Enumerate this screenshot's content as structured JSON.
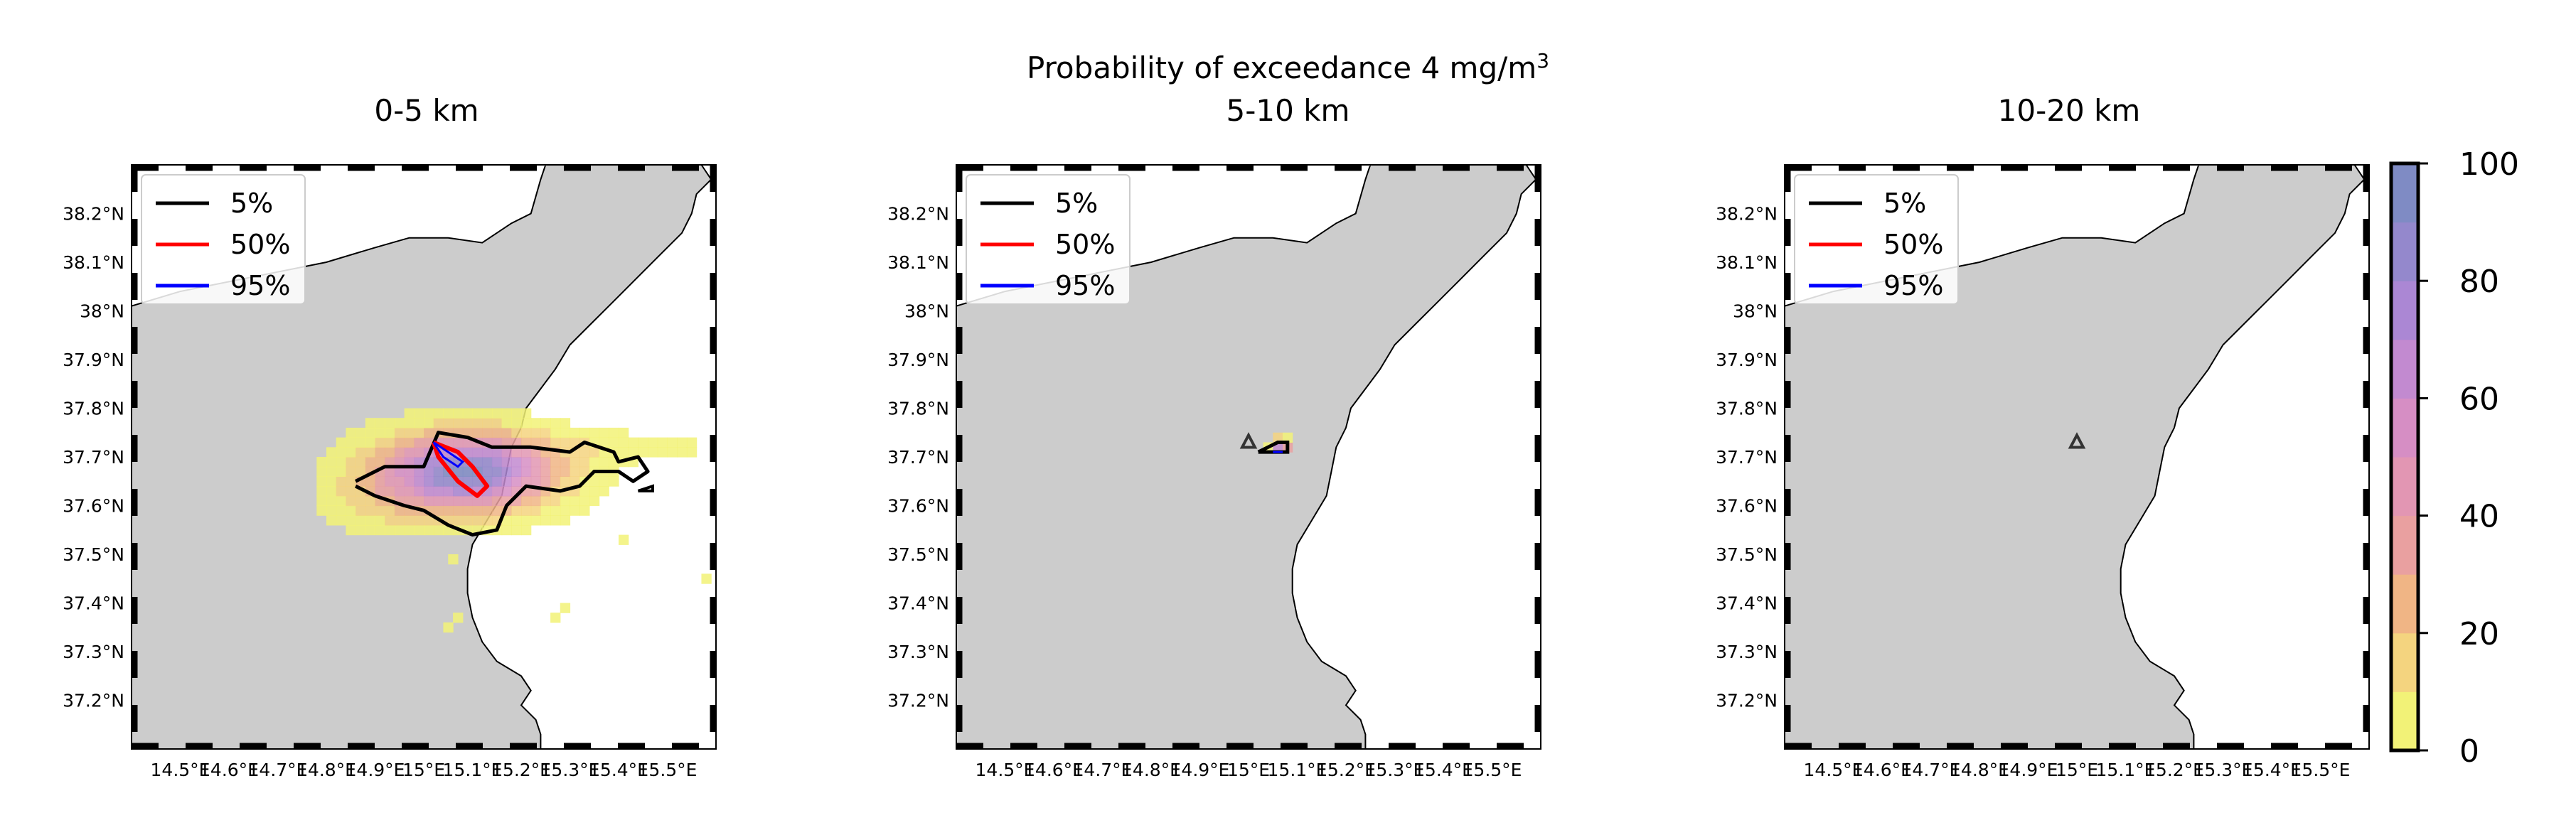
{
  "figure": {
    "title_line1": "Probability of exceedance 4 mg/m",
    "title_sup": "3",
    "subtitle_center": "5-10 km"
  },
  "panels": [
    {
      "title": "0-5 km"
    },
    {
      "title": "5-10 km"
    },
    {
      "title": "10-20 km"
    }
  ],
  "axes": {
    "lat_ticks": [
      "38.2°N",
      "38.1°N",
      "38°N",
      "37.9°N",
      "37.8°N",
      "37.7°N",
      "37.6°N",
      "37.5°N",
      "37.4°N",
      "37.3°N",
      "37.2°N"
    ],
    "lat_values": [
      38.2,
      38.1,
      38.0,
      37.9,
      37.8,
      37.7,
      37.6,
      37.5,
      37.4,
      37.3,
      37.2
    ],
    "lon_ticks": [
      "14.5°E",
      "14.6°E",
      "14.7°E",
      "14.8°E",
      "14.9°E",
      "15°E",
      "15.1°E",
      "15.2°E",
      "15.3°E",
      "15.4°E",
      "15.5°E"
    ],
    "lon_values": [
      14.5,
      14.6,
      14.7,
      14.8,
      14.9,
      15.0,
      15.1,
      15.2,
      15.3,
      15.4,
      15.5
    ],
    "lon_range": [
      14.4,
      15.6
    ],
    "lat_range": [
      37.1,
      38.3
    ]
  },
  "legend": {
    "entries": [
      {
        "label": "5%",
        "color": "#000000"
      },
      {
        "label": "50%",
        "color": "#ff0000"
      },
      {
        "label": "95%",
        "color": "#0000ff"
      }
    ]
  },
  "colorbar": {
    "ticks": [
      "100",
      "80",
      "60",
      "40",
      "20",
      "0"
    ],
    "range": [
      0,
      100
    ],
    "colors": [
      "#f2f277",
      "#f4d47f",
      "#f0b585",
      "#e9a0a0",
      "#e296b3",
      "#d68ec4",
      "#c28ad0",
      "#ab87d4",
      "#9488cc",
      "#7f8bc4"
    ]
  },
  "vent": {
    "lon": 15.0,
    "lat": 37.73,
    "marker": "triangle"
  },
  "colors": {
    "land": "#cccccc",
    "sea": "#ffffff",
    "coast": "#000000"
  }
}
